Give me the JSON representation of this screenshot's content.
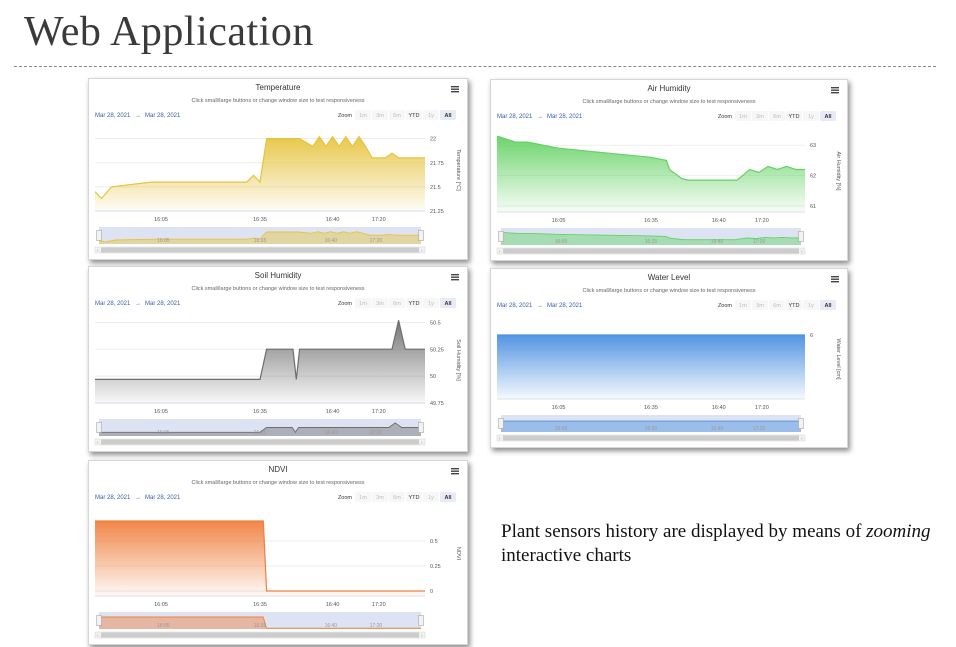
{
  "page": {
    "title": "Web Application",
    "caption_pre": "Plant sensors history are displayed by means of ",
    "caption_em": "zooming",
    "caption_post": " interactive charts"
  },
  "chart_common": {
    "subtitle": "Click small/large buttons or change window size to test responsiveness",
    "date_from": "Mar 28, 2021",
    "date_sep": "→",
    "date_to": "Mar 28, 2021",
    "zoom_label": "Zoom",
    "zoom_buttons": [
      "1m",
      "3m",
      "6m",
      "YTD",
      "1y",
      "All"
    ],
    "selected_zoom": "All",
    "menu_icon": "hamburger-menu-icon",
    "x_ticks": [
      "16:05",
      "16:35",
      "16:40",
      "17:20"
    ]
  },
  "chart_data": [
    {
      "type": "area",
      "title": "Temperature",
      "ylabel": "Temperature [°C]",
      "color": "#e6c440",
      "ylim": [
        21.25,
        22.1
      ],
      "y_ticks": [
        "22",
        "21.75",
        "21.5",
        "21.25"
      ],
      "x": [
        0,
        0.02,
        0.05,
        0.17,
        0.46,
        0.48,
        0.5,
        0.52,
        0.62,
        0.66,
        0.68,
        0.7,
        0.72,
        0.74,
        0.76,
        0.78,
        0.8,
        0.82,
        0.84,
        0.86,
        0.88,
        0.9,
        0.92,
        0.94,
        0.96,
        1.0
      ],
      "y": [
        21.45,
        21.38,
        21.5,
        21.55,
        21.55,
        21.62,
        21.55,
        22.0,
        22.0,
        21.92,
        22.02,
        21.92,
        22.02,
        21.92,
        22.02,
        21.92,
        22.02,
        21.92,
        21.8,
        21.8,
        21.8,
        21.85,
        21.8,
        21.8,
        21.8,
        21.8
      ]
    },
    {
      "type": "area",
      "title": "Air Humidity",
      "ylabel": "Air Humidity [%]",
      "color": "#64d264",
      "ylim": [
        60.8,
        63.5
      ],
      "y_ticks": [
        "63",
        "62",
        "61"
      ],
      "x": [
        0,
        0.03,
        0.06,
        0.1,
        0.15,
        0.2,
        0.25,
        0.3,
        0.35,
        0.4,
        0.45,
        0.5,
        0.55,
        0.56,
        0.6,
        0.62,
        0.65,
        0.7,
        0.75,
        0.78,
        0.82,
        0.85,
        0.88,
        0.91,
        0.94,
        0.97,
        1.0
      ],
      "y": [
        63.3,
        63.2,
        63.1,
        63.1,
        63.0,
        62.9,
        62.85,
        62.8,
        62.75,
        62.7,
        62.65,
        62.6,
        62.5,
        62.2,
        61.9,
        61.85,
        61.85,
        61.85,
        61.85,
        61.85,
        62.2,
        62.1,
        62.3,
        62.2,
        62.3,
        62.2,
        62.2
      ]
    },
    {
      "type": "area",
      "title": "Soil Humidity",
      "ylabel": "Soil Humidity [%]",
      "color": "#6e6e6e",
      "ylim": [
        49.75,
        50.55
      ],
      "y_ticks": [
        "50.5",
        "50.25",
        "50",
        "49.75"
      ],
      "x": [
        0,
        0.5,
        0.52,
        0.6,
        0.61,
        0.62,
        0.63,
        0.9,
        0.92,
        0.94,
        1.0
      ],
      "y": [
        49.97,
        49.97,
        50.25,
        50.25,
        49.97,
        50.25,
        50.25,
        50.25,
        50.52,
        50.25,
        50.25
      ]
    },
    {
      "type": "area",
      "title": "Water Level",
      "ylabel": "Water Level [cm]",
      "color": "#4a8fe0",
      "ylim": [
        0,
        7.5
      ],
      "y_ticks": [
        "6"
      ],
      "x": [
        0,
        1.0
      ],
      "y": [
        6,
        6
      ]
    },
    {
      "type": "area",
      "title": "NDVI",
      "ylabel": "NDVI",
      "color": "#f08040",
      "ylim": [
        -0.05,
        0.8
      ],
      "y_ticks": [
        "0.5",
        "0.25",
        "0"
      ],
      "x": [
        0,
        0.51,
        0.52,
        1.0
      ],
      "y": [
        0.7,
        0.7,
        0,
        0
      ]
    }
  ]
}
